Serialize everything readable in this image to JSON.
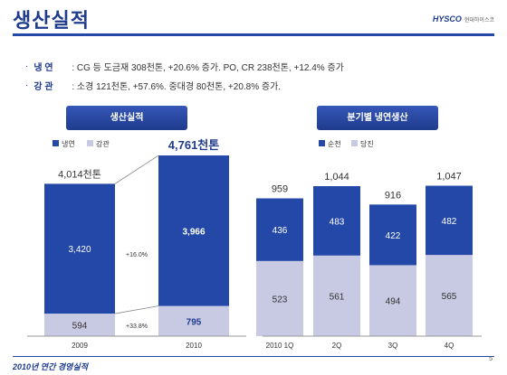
{
  "header": {
    "title": "생산실적",
    "logo_brand": "HYSCO",
    "logo_sub": "현대하이스코"
  },
  "bullets": [
    {
      "label": "냉   연",
      "text": ":  CG 등 도금재 308천톤, +20.6% 증가.  PO, CR 238천톤, +12.4% 증가"
    },
    {
      "label": "강   관",
      "text": ":  소경 121천톤, +57.6%.  중대경 80천톤, +20.8% 증가."
    }
  ],
  "left_panel": {
    "title": "생산실적"
  },
  "right_panel": {
    "title": "분기별 냉연생산"
  },
  "footer": {
    "text": "2010년 연간 경영실적",
    "page": "5"
  },
  "colors": {
    "primary": "#2348a8",
    "secondary": "#c8c9e3"
  },
  "chart_data": [
    {
      "type": "bar",
      "categories": [
        "2009",
        "2010"
      ],
      "series": [
        {
          "name": "냉연",
          "values": [
            3420,
            3966
          ],
          "labels": [
            "3,420",
            "3,966"
          ]
        },
        {
          "name": "강관",
          "values": [
            594,
            795
          ],
          "labels": [
            "594",
            "795"
          ]
        }
      ],
      "totals": [
        "4,014천톤",
        "4,761천톤"
      ],
      "annotations": [
        "+16.0%",
        "+33.8%"
      ],
      "stacked": true,
      "legend": "top-left"
    },
    {
      "type": "bar",
      "categories": [
        "2010 1Q",
        "2Q",
        "3Q",
        "4Q"
      ],
      "series": [
        {
          "name": "순천",
          "values": [
            436,
            483,
            422,
            482
          ]
        },
        {
          "name": "당진",
          "values": [
            523,
            561,
            494,
            565
          ]
        }
      ],
      "totals": [
        "959",
        "1,044",
        "916",
        "1,047"
      ],
      "stacked": true,
      "legend": "top-left"
    }
  ]
}
